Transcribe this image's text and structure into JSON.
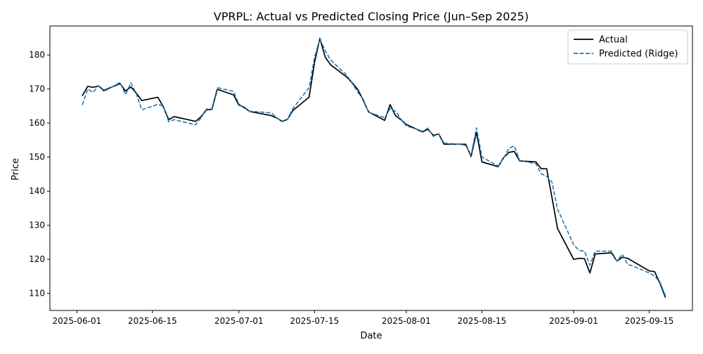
{
  "chart_data": {
    "type": "line",
    "title": "VPRPL: Actual vs Predicted Closing Price (Jun–Sep 2025)",
    "xlabel": "Date",
    "ylabel": "Price",
    "x_ticks": [
      "2025-06-01",
      "2025-06-15",
      "2025-07-01",
      "2025-07-15",
      "2025-08-01",
      "2025-08-15",
      "2025-09-01",
      "2025-09-15"
    ],
    "y_ticks": [
      110,
      120,
      130,
      140,
      150,
      160,
      170,
      180
    ],
    "xlim": [
      "2025-05-27",
      "2025-09-23"
    ],
    "ylim": [
      105,
      188.5
    ],
    "grid": false,
    "legend_position": "top-right",
    "x": [
      "2025-06-02",
      "2025-06-03",
      "2025-06-04",
      "2025-06-05",
      "2025-06-06",
      "2025-06-09",
      "2025-06-10",
      "2025-06-11",
      "2025-06-12",
      "2025-06-13",
      "2025-06-16",
      "2025-06-17",
      "2025-06-18",
      "2025-06-19",
      "2025-06-23",
      "2025-06-24",
      "2025-06-25",
      "2025-06-26",
      "2025-06-27",
      "2025-06-30",
      "2025-07-01",
      "2025-07-02",
      "2025-07-03",
      "2025-07-07",
      "2025-07-08",
      "2025-07-09",
      "2025-07-10",
      "2025-07-11",
      "2025-07-14",
      "2025-07-15",
      "2025-07-16",
      "2025-07-17",
      "2025-07-18",
      "2025-07-21",
      "2025-07-22",
      "2025-07-23",
      "2025-07-24",
      "2025-07-25",
      "2025-07-28",
      "2025-07-29",
      "2025-07-30",
      "2025-07-31",
      "2025-08-01",
      "2025-08-04",
      "2025-08-05",
      "2025-08-06",
      "2025-08-07",
      "2025-08-08",
      "2025-08-11",
      "2025-08-12",
      "2025-08-13",
      "2025-08-14",
      "2025-08-15",
      "2025-08-18",
      "2025-08-19",
      "2025-08-20",
      "2025-08-21",
      "2025-08-22",
      "2025-08-25",
      "2025-08-26",
      "2025-08-27",
      "2025-08-28",
      "2025-08-29",
      "2025-09-01",
      "2025-09-02",
      "2025-09-03",
      "2025-09-04",
      "2025-09-05",
      "2025-09-08",
      "2025-09-09",
      "2025-09-10",
      "2025-09-11",
      "2025-09-12",
      "2025-09-15",
      "2025-09-16",
      "2025-09-17",
      "2025-09-18"
    ],
    "series": [
      {
        "name": "Actual",
        "color": "#000000",
        "dash": "solid",
        "values": [
          168.0,
          170.8,
          170.5,
          170.9,
          169.6,
          171.6,
          169.4,
          170.6,
          168.8,
          166.6,
          167.6,
          164.8,
          161.0,
          161.9,
          160.5,
          161.9,
          163.9,
          164.0,
          169.9,
          168.3,
          165.3,
          164.6,
          163.4,
          162.2,
          161.5,
          160.5,
          161.1,
          163.7,
          167.6,
          177.8,
          184.9,
          179.3,
          177.1,
          173.5,
          171.8,
          169.9,
          166.8,
          163.3,
          160.8,
          165.4,
          162.2,
          161.0,
          159.6,
          157.4,
          158.2,
          156.4,
          156.8,
          153.8,
          153.8,
          153.8,
          150.2,
          157.3,
          148.6,
          147.2,
          149.8,
          151.4,
          151.7,
          148.9,
          148.6,
          146.6,
          146.6,
          138.0,
          129.1,
          120.0,
          120.3,
          120.2,
          116.0,
          121.6,
          121.9,
          119.5,
          120.6,
          120.3,
          119.4,
          116.6,
          116.4,
          112.9,
          108.8
        ]
      },
      {
        "name": "Predicted (Ridge)",
        "color": "#1f77b4",
        "dash": "dashed",
        "values": [
          165.3,
          170.0,
          169.0,
          171.0,
          169.3,
          171.9,
          168.4,
          171.8,
          168.6,
          163.9,
          165.5,
          165.0,
          160.4,
          161.0,
          159.5,
          161.6,
          164.1,
          164.2,
          170.4,
          169.3,
          165.6,
          164.4,
          163.5,
          163.0,
          161.6,
          160.4,
          161.0,
          164.3,
          170.4,
          179.3,
          184.7,
          181.2,
          178.5,
          174.0,
          171.6,
          169.1,
          167.1,
          163.2,
          161.6,
          164.3,
          163.5,
          161.2,
          159.2,
          157.6,
          158.5,
          156.1,
          156.9,
          154.1,
          153.8,
          153.4,
          150.5,
          158.6,
          150.0,
          147.4,
          149.6,
          152.6,
          153.3,
          149.0,
          148.1,
          145.1,
          144.4,
          142.6,
          134.8,
          124.3,
          122.6,
          122.4,
          118.3,
          122.4,
          122.4,
          119.5,
          121.5,
          118.5,
          118.0,
          116.0,
          115.1,
          113.2,
          109.3
        ]
      }
    ]
  }
}
